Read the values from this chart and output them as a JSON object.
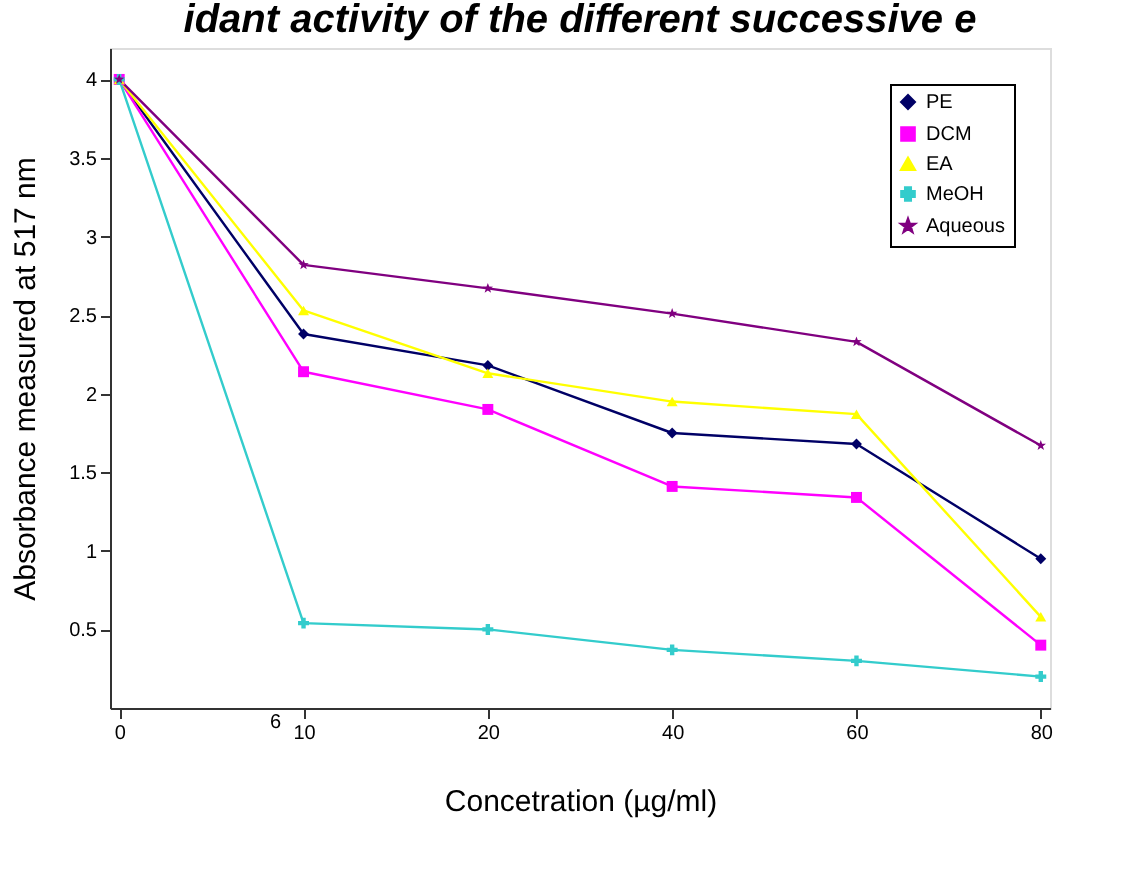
{
  "chart_data": {
    "type": "line",
    "title": "idant activity of the different successive e",
    "xlabel": "Concetration (µg/ml)",
    "ylabel": "Absorbance measured at 517 nm",
    "categories": [
      "0",
      "10",
      "20",
      "40",
      "60",
      "80"
    ],
    "series": [
      {
        "name": "PE",
        "color": "#000066",
        "marker": "diamond",
        "values": [
          4,
          2.38,
          2.18,
          1.75,
          1.68,
          0.95
        ]
      },
      {
        "name": "DCM",
        "color": "#ff00ff",
        "marker": "square",
        "values": [
          4,
          2.14,
          1.9,
          1.41,
          1.34,
          0.4
        ]
      },
      {
        "name": "EA",
        "color": "#ffff00",
        "marker": "triangle",
        "values": [
          4,
          2.53,
          2.13,
          1.95,
          1.87,
          0.58
        ]
      },
      {
        "name": "MeOH",
        "color": "#33cccc",
        "marker": "cross",
        "values": [
          4,
          0.54,
          0.5,
          0.37,
          0.3,
          0.2
        ]
      },
      {
        "name": "Aqueous",
        "color": "#800080",
        "marker": "star",
        "values": [
          4,
          2.82,
          2.67,
          2.51,
          2.33,
          1.67
        ]
      }
    ],
    "ylim": [
      0,
      4.2
    ],
    "yticks": [
      0.5,
      1,
      1.5,
      2,
      2.5,
      3,
      3.5,
      4
    ],
    "annotations": [
      "6"
    ],
    "legend": "top right",
    "grid": false,
    "line_style": "solid"
  }
}
